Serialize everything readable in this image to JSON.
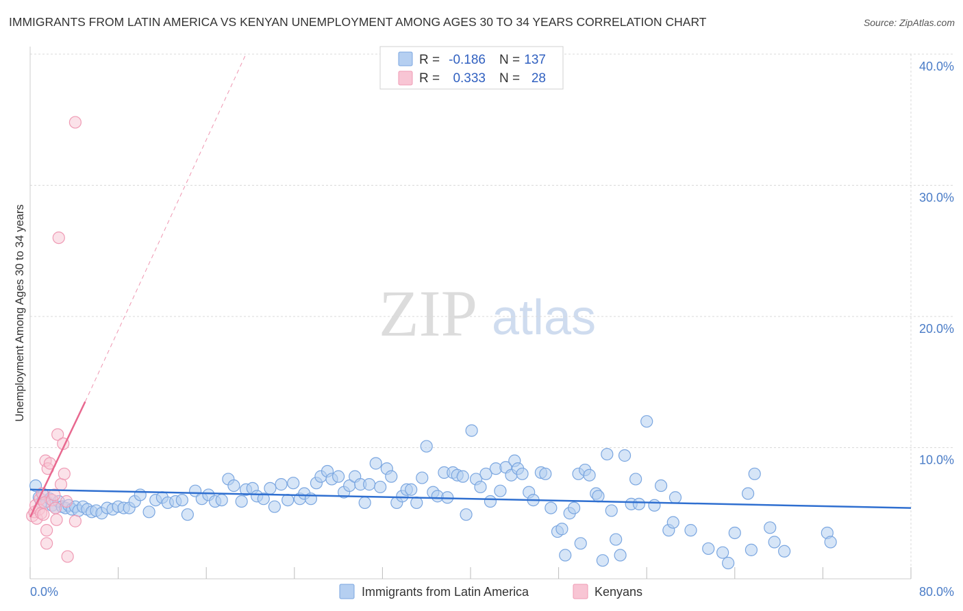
{
  "title": "IMMIGRANTS FROM LATIN AMERICA VS KENYAN UNEMPLOYMENT AMONG AGES 30 TO 34 YEARS CORRELATION CHART",
  "source": "Source: ZipAtlas.com",
  "watermark": {
    "zip": "ZIP",
    "atlas": "atlas"
  },
  "colors": {
    "blue_fill": "#b5cff1",
    "blue_stroke": "#7aa6e0",
    "blue_line": "#2f6fd0",
    "pink_fill": "#f8c5d4",
    "pink_stroke": "#ef9ab4",
    "pink_line": "#e8688f",
    "grid": "#d9d9d9",
    "tick_text": "#4a7cc7"
  },
  "legend": {
    "rows": [
      {
        "r_label": "R =",
        "r_value": "-0.186",
        "n_label": "N =",
        "n_value": "137"
      },
      {
        "r_label": "R =",
        "r_value": "0.333",
        "n_label": "N =",
        "n_value": "28"
      }
    ]
  },
  "chart_data": {
    "type": "scatter",
    "title": "IMMIGRANTS FROM LATIN AMERICA VS KENYAN UNEMPLOYMENT AMONG AGES 30 TO 34 YEARS CORRELATION CHART",
    "xlabel": "",
    "ylabel": "Unemployment Among Ages 30 to 34 years",
    "xlim": [
      0,
      80
    ],
    "ylim": [
      0,
      41
    ],
    "x_tick_labels": [
      "0.0%",
      "80.0%"
    ],
    "y_ticks": [
      10,
      20,
      30,
      40
    ],
    "y_tick_labels": [
      "10.0%",
      "20.0%",
      "30.0%",
      "40.0%"
    ],
    "grid": true,
    "series": [
      {
        "name": "Immigrants from Latin America",
        "r": -0.186,
        "n": 137,
        "trend": {
          "x": [
            0,
            80
          ],
          "y": [
            6.8,
            5.4
          ]
        },
        "points": [
          [
            0.5,
            7.1
          ],
          [
            0.8,
            6.2
          ],
          [
            1.0,
            5.8
          ],
          [
            1.2,
            6.4
          ],
          [
            1.5,
            5.9
          ],
          [
            1.8,
            6.1
          ],
          [
            2.0,
            5.6
          ],
          [
            2.3,
            5.4
          ],
          [
            2.6,
            5.9
          ],
          [
            2.9,
            5.5
          ],
          [
            3.2,
            5.4
          ],
          [
            3.5,
            5.6
          ],
          [
            3.8,
            5.3
          ],
          [
            4.1,
            5.5
          ],
          [
            4.4,
            5.2
          ],
          [
            4.8,
            5.5
          ],
          [
            5.2,
            5.3
          ],
          [
            5.6,
            5.1
          ],
          [
            6.0,
            5.2
          ],
          [
            6.5,
            5.0
          ],
          [
            7.0,
            5.4
          ],
          [
            7.5,
            5.3
          ],
          [
            8.0,
            5.5
          ],
          [
            8.5,
            5.4
          ],
          [
            9.0,
            5.4
          ],
          [
            9.5,
            5.9
          ],
          [
            10.0,
            6.4
          ],
          [
            10.8,
            5.1
          ],
          [
            11.4,
            6.0
          ],
          [
            12.0,
            6.2
          ],
          [
            12.5,
            5.8
          ],
          [
            13.2,
            5.9
          ],
          [
            13.8,
            6.0
          ],
          [
            14.3,
            4.9
          ],
          [
            15.0,
            6.7
          ],
          [
            15.6,
            6.1
          ],
          [
            16.2,
            6.4
          ],
          [
            16.8,
            5.9
          ],
          [
            17.4,
            6.0
          ],
          [
            18.0,
            7.6
          ],
          [
            18.5,
            7.1
          ],
          [
            19.2,
            5.9
          ],
          [
            19.6,
            6.8
          ],
          [
            20.2,
            6.9
          ],
          [
            20.6,
            6.3
          ],
          [
            21.2,
            6.1
          ],
          [
            21.8,
            6.9
          ],
          [
            22.2,
            5.5
          ],
          [
            22.8,
            7.2
          ],
          [
            23.4,
            6.0
          ],
          [
            23.9,
            7.3
          ],
          [
            24.5,
            6.1
          ],
          [
            24.9,
            6.5
          ],
          [
            25.5,
            6.1
          ],
          [
            26.0,
            7.3
          ],
          [
            26.4,
            7.8
          ],
          [
            27.0,
            8.2
          ],
          [
            27.4,
            7.6
          ],
          [
            28.0,
            7.8
          ],
          [
            28.5,
            6.6
          ],
          [
            29.0,
            7.1
          ],
          [
            29.5,
            7.8
          ],
          [
            30.0,
            7.2
          ],
          [
            30.4,
            5.8
          ],
          [
            30.8,
            7.2
          ],
          [
            31.4,
            8.8
          ],
          [
            31.8,
            7.0
          ],
          [
            32.4,
            8.4
          ],
          [
            32.8,
            7.8
          ],
          [
            33.3,
            5.8
          ],
          [
            33.8,
            6.3
          ],
          [
            34.2,
            6.8
          ],
          [
            34.6,
            6.8
          ],
          [
            35.1,
            5.8
          ],
          [
            35.6,
            7.7
          ],
          [
            36.0,
            10.1
          ],
          [
            36.6,
            6.6
          ],
          [
            37.0,
            6.3
          ],
          [
            37.6,
            8.1
          ],
          [
            37.9,
            6.2
          ],
          [
            38.4,
            8.1
          ],
          [
            38.8,
            7.9
          ],
          [
            39.3,
            7.8
          ],
          [
            39.6,
            4.9
          ],
          [
            40.1,
            11.3
          ],
          [
            40.5,
            7.6
          ],
          [
            40.9,
            7.0
          ],
          [
            41.4,
            8.0
          ],
          [
            41.8,
            5.9
          ],
          [
            42.3,
            8.4
          ],
          [
            42.7,
            6.7
          ],
          [
            43.2,
            8.5
          ],
          [
            43.7,
            7.9
          ],
          [
            44.0,
            9.0
          ],
          [
            44.3,
            8.4
          ],
          [
            44.7,
            8.0
          ],
          [
            45.3,
            6.6
          ],
          [
            45.7,
            6.0
          ],
          [
            46.4,
            8.1
          ],
          [
            46.8,
            8.0
          ],
          [
            47.3,
            5.4
          ],
          [
            47.9,
            3.6
          ],
          [
            48.3,
            3.8
          ],
          [
            48.6,
            1.8
          ],
          [
            49.0,
            5.0
          ],
          [
            49.4,
            5.4
          ],
          [
            49.8,
            8.0
          ],
          [
            50.0,
            2.7
          ],
          [
            50.4,
            8.3
          ],
          [
            50.8,
            7.9
          ],
          [
            51.4,
            6.5
          ],
          [
            51.6,
            6.3
          ],
          [
            52.0,
            1.4
          ],
          [
            52.4,
            9.5
          ],
          [
            52.8,
            5.2
          ],
          [
            53.2,
            3.0
          ],
          [
            53.6,
            1.8
          ],
          [
            54.0,
            9.4
          ],
          [
            54.6,
            5.7
          ],
          [
            55.0,
            7.6
          ],
          [
            55.3,
            5.7
          ],
          [
            56.0,
            12.0
          ],
          [
            56.7,
            5.6
          ],
          [
            57.3,
            7.1
          ],
          [
            58.0,
            3.7
          ],
          [
            58.4,
            4.3
          ],
          [
            58.6,
            6.2
          ],
          [
            60.0,
            3.7
          ],
          [
            61.6,
            2.3
          ],
          [
            62.9,
            2.0
          ],
          [
            63.4,
            1.2
          ],
          [
            64.0,
            3.5
          ],
          [
            65.2,
            6.5
          ],
          [
            65.5,
            2.2
          ],
          [
            65.8,
            8.0
          ],
          [
            67.2,
            3.9
          ],
          [
            67.6,
            2.8
          ],
          [
            68.5,
            2.1
          ],
          [
            72.4,
            3.5
          ],
          [
            72.7,
            2.8
          ]
        ]
      },
      {
        "name": "Kenyans",
        "r": 0.333,
        "n": 28,
        "trend": {
          "x": [
            0,
            5.0
          ],
          "y": [
            4.7,
            13.5
          ]
        },
        "trend_dashed": {
          "x": [
            5.0,
            19.6
          ],
          "y": [
            13.5,
            40.0
          ]
        },
        "points": [
          [
            0.2,
            4.8
          ],
          [
            0.4,
            5.1
          ],
          [
            0.5,
            5.6
          ],
          [
            0.6,
            4.6
          ],
          [
            0.8,
            5.3
          ],
          [
            0.9,
            6.1
          ],
          [
            1.0,
            5.0
          ],
          [
            1.1,
            6.5
          ],
          [
            1.2,
            4.9
          ],
          [
            1.3,
            5.8
          ],
          [
            1.4,
            9.0
          ],
          [
            1.5,
            3.7
          ],
          [
            1.5,
            2.7
          ],
          [
            1.6,
            8.4
          ],
          [
            1.8,
            8.8
          ],
          [
            2.0,
            6.0
          ],
          [
            2.2,
            6.4
          ],
          [
            2.3,
            5.4
          ],
          [
            2.4,
            4.5
          ],
          [
            2.5,
            11.0
          ],
          [
            2.6,
            26.0
          ],
          [
            2.8,
            7.2
          ],
          [
            3.0,
            10.3
          ],
          [
            3.1,
            8.0
          ],
          [
            3.3,
            5.9
          ],
          [
            3.4,
            1.7
          ],
          [
            4.1,
            4.4
          ],
          [
            4.1,
            34.8
          ]
        ]
      }
    ]
  },
  "bottom_legend": {
    "items": [
      "Immigrants from Latin America",
      "Kenyans"
    ]
  }
}
